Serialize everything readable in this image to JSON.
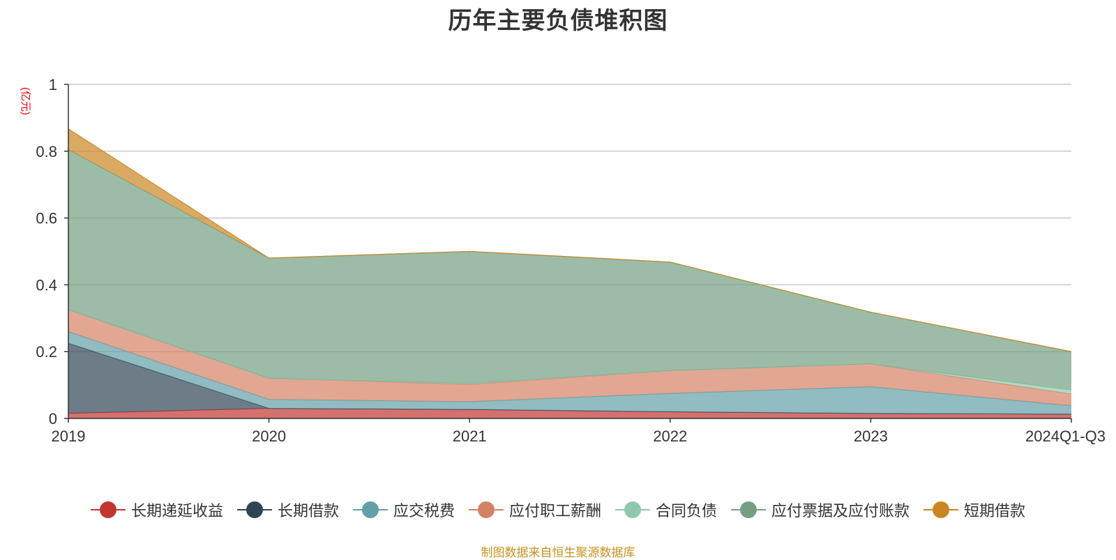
{
  "chart_data": {
    "type": "area",
    "stacked": true,
    "title": "历年主要负债堆积图",
    "unit_label": "(亿元)",
    "categories": [
      "2019",
      "2020",
      "2021",
      "2022",
      "2023",
      "2024Q1-Q3"
    ],
    "ylim": [
      0,
      1
    ],
    "yticks": [
      "0",
      "0.2",
      "0.4",
      "0.6",
      "0.8",
      "1"
    ],
    "grid": true,
    "legend_position": "bottom",
    "series": [
      {
        "name": "长期递延收益",
        "color": "#c23531",
        "values": [
          0.015,
          0.03,
          0.027,
          0.02,
          0.015,
          0.013
        ]
      },
      {
        "name": "长期借款",
        "color": "#2f4554",
        "values": [
          0.21,
          0.0,
          0.0,
          0.0,
          0.0,
          0.0
        ]
      },
      {
        "name": "应交税费",
        "color": "#61a0a8",
        "values": [
          0.035,
          0.027,
          0.023,
          0.055,
          0.08,
          0.025
        ]
      },
      {
        "name": "应付职工薪酬",
        "color": "#d48265",
        "values": [
          0.065,
          0.063,
          0.052,
          0.068,
          0.068,
          0.035
        ]
      },
      {
        "name": "合同负债",
        "color": "#91c7ae",
        "values": [
          0.0,
          0.0,
          0.003,
          0.0,
          0.0,
          0.012
        ]
      },
      {
        "name": "应付票据及应付账款",
        "color": "#749f83",
        "values": [
          0.48,
          0.36,
          0.395,
          0.325,
          0.155,
          0.115
        ]
      },
      {
        "name": "短期借款",
        "color": "#ca8622",
        "values": [
          0.062,
          0.0,
          0.0,
          0.0,
          0.0,
          0.0
        ]
      }
    ]
  },
  "footer": {
    "source": "制图数据来自恒生聚源数据库"
  }
}
